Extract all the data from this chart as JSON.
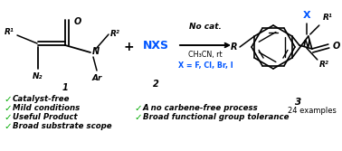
{
  "background_color": "#ffffff",
  "no_cat_text": "No cat.",
  "solvent_text": "CH₃CN, rt",
  "x_eq_text": "X = F, Cl, Br, I",
  "nxs_text": "NXS",
  "examples_text": "24 examples",
  "check_items_left": [
    "Catalyst-free",
    "Mild conditions",
    "Useful Product",
    "Broad substrate scope"
  ],
  "check_items_right": [
    "A no carbene-free process",
    "Broad functional group tolerance"
  ],
  "blue_color": "#0055ff",
  "green_color": "#00aa00",
  "black_color": "#000000",
  "figsize": [
    3.78,
    1.67
  ],
  "dpi": 100
}
